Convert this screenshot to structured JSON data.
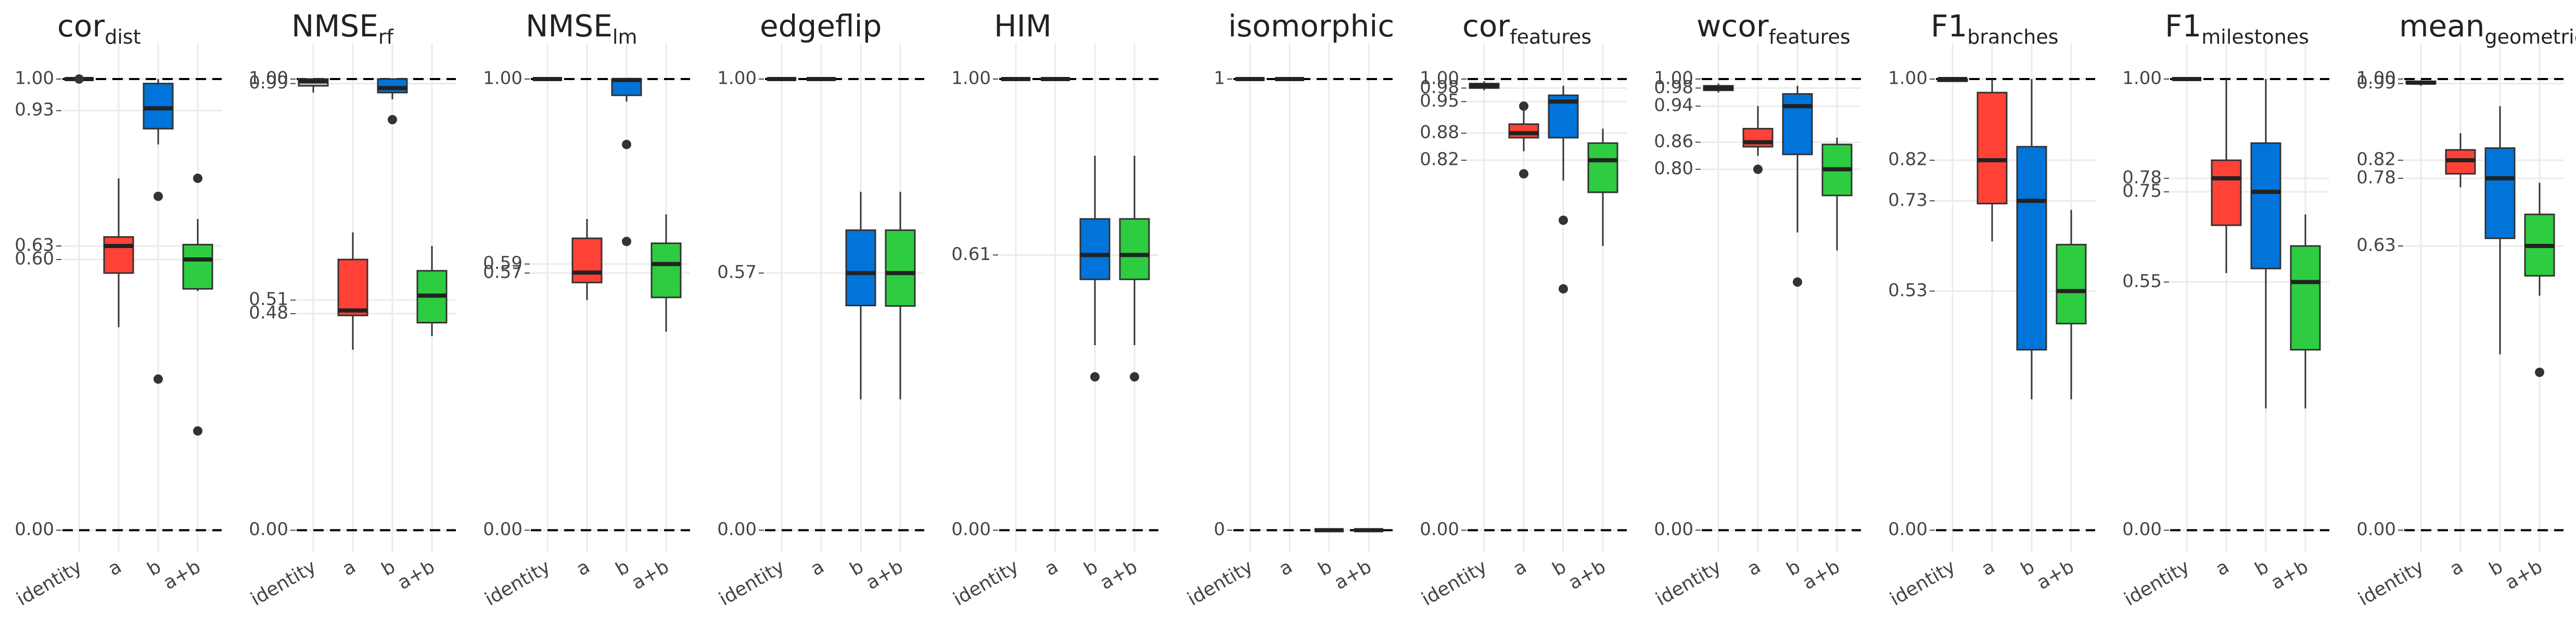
{
  "chart_data": [
    {
      "type": "box",
      "title": "cor",
      "title_sub": "dist",
      "categories": [
        "identity",
        "a",
        "b",
        "a+b"
      ],
      "colors": [
        "#bdbdbd",
        "#ff4136",
        "#0074d9",
        "#2ecc40"
      ],
      "ylim": [
        -0.05,
        1.08
      ],
      "yticks": [
        {
          "value": 0,
          "label": "0.00"
        },
        {
          "value": 0.6,
          "label": "0.60"
        },
        0.63,
        0.93,
        {
          "value": 1,
          "label": "1.00"
        }
      ],
      "reference_lines": [
        0,
        1
      ],
      "boxes": [
        {
          "low": 1,
          "q1": 1,
          "median": 1,
          "q3": 1,
          "high": 1,
          "outliers": [
            1
          ]
        },
        {
          "low": 0.45,
          "q1": 0.57,
          "median": 0.63,
          "q3": 0.65,
          "high": 0.78,
          "outliers": []
        },
        {
          "low": 0.855,
          "q1": 0.89,
          "median": 0.935,
          "q3": 0.99,
          "high": 1,
          "outliers": [
            0.74,
            0.335
          ]
        },
        {
          "low": 0.53,
          "q1": 0.535,
          "median": 0.6,
          "q3": 0.633,
          "high": 0.69,
          "outliers": [
            0.78,
            0.22
          ]
        }
      ]
    },
    {
      "type": "box",
      "title": "NMSE",
      "title_sub": "rf",
      "categories": [
        "identity",
        "a",
        "b",
        "a+b"
      ],
      "colors": [
        "#bdbdbd",
        "#ff4136",
        "#0074d9",
        "#2ecc40"
      ],
      "ylim": [
        -0.05,
        1.08
      ],
      "yticks": [
        {
          "value": 0,
          "label": "0.00"
        },
        {
          "value": 0.48,
          "label": "0.48"
        },
        0.51,
        0.99,
        {
          "value": 1,
          "label": "1.00"
        }
      ],
      "reference_lines": [
        0,
        1
      ],
      "boxes": [
        {
          "low": 0.97,
          "q1": 0.985,
          "median": 0.995,
          "q3": 1,
          "high": 1,
          "outliers": []
        },
        {
          "low": 0.4,
          "q1": 0.476,
          "median": 0.487,
          "q3": 0.6,
          "high": 0.66,
          "outliers": []
        },
        {
          "low": 0.955,
          "q1": 0.97,
          "median": 0.98,
          "q3": 1,
          "high": 1,
          "outliers": [
            0.91
          ]
        },
        {
          "low": 0.43,
          "q1": 0.46,
          "median": 0.52,
          "q3": 0.575,
          "high": 0.63,
          "outliers": []
        }
      ]
    },
    {
      "type": "box",
      "title": "NMSE",
      "title_sub": "lm",
      "categories": [
        "identity",
        "a",
        "b",
        "a+b"
      ],
      "colors": [
        "#bdbdbd",
        "#ff4136",
        "#0074d9",
        "#2ecc40"
      ],
      "ylim": [
        -0.05,
        1.08
      ],
      "yticks": [
        {
          "value": 0,
          "label": "0.00"
        },
        0.57,
        0.59,
        {
          "value": 1,
          "label": "1.00"
        }
      ],
      "reference_lines": [
        0,
        1
      ],
      "boxes": [
        {
          "low": 1,
          "q1": 1,
          "median": 1,
          "q3": 1,
          "high": 1,
          "outliers": []
        },
        {
          "low": 0.51,
          "q1": 0.549,
          "median": 0.571,
          "q3": 0.647,
          "high": 0.69,
          "outliers": []
        },
        {
          "low": 0.95,
          "q1": 0.964,
          "median": 0.998,
          "q3": 1,
          "high": 1,
          "outliers": [
            0.855,
            0.64
          ]
        },
        {
          "low": 0.44,
          "q1": 0.516,
          "median": 0.59,
          "q3": 0.636,
          "high": 0.7,
          "outliers": []
        }
      ]
    },
    {
      "type": "box",
      "title": "edgeflip",
      "categories": [
        "identity",
        "a",
        "b",
        "a+b"
      ],
      "colors": [
        "#bdbdbd",
        "#ff4136",
        "#0074d9",
        "#2ecc40"
      ],
      "ylim": [
        -0.05,
        1.08
      ],
      "yticks": [
        {
          "value": 0,
          "label": "0.00"
        },
        0.57,
        {
          "value": 1,
          "label": "1.00"
        }
      ],
      "reference_lines": [
        0,
        1
      ],
      "boxes": [
        {
          "low": 1,
          "q1": 1,
          "median": 1,
          "q3": 1,
          "high": 1,
          "outliers": []
        },
        {
          "low": 1,
          "q1": 1,
          "median": 1,
          "q3": 1,
          "high": 1,
          "outliers": []
        },
        {
          "low": 0.29,
          "q1": 0.498,
          "median": 0.57,
          "q3": 0.665,
          "high": 0.75,
          "outliers": []
        },
        {
          "low": 0.29,
          "q1": 0.497,
          "median": 0.57,
          "q3": 0.665,
          "high": 0.75,
          "outliers": []
        }
      ]
    },
    {
      "type": "box",
      "title": "HIM",
      "categories": [
        "identity",
        "a",
        "b",
        "a+b"
      ],
      "colors": [
        "#bdbdbd",
        "#ff4136",
        "#0074d9",
        "#2ecc40"
      ],
      "ylim": [
        -0.05,
        1.08
      ],
      "yticks": [
        {
          "value": 0,
          "label": "0.00"
        },
        0.61,
        {
          "value": 1,
          "label": "1.00"
        }
      ],
      "reference_lines": [
        0,
        1
      ],
      "boxes": [
        {
          "low": 1,
          "q1": 1,
          "median": 1,
          "q3": 1,
          "high": 1,
          "outliers": []
        },
        {
          "low": 1,
          "q1": 1,
          "median": 1,
          "q3": 1,
          "high": 1,
          "outliers": []
        },
        {
          "low": 0.41,
          "q1": 0.556,
          "median": 0.61,
          "q3": 0.69,
          "high": 0.83,
          "outliers": [
            0.34
          ]
        },
        {
          "low": 0.41,
          "q1": 0.556,
          "median": 0.61,
          "q3": 0.69,
          "high": 0.83,
          "outliers": [
            0.34
          ]
        }
      ]
    },
    {
      "type": "box",
      "title": "isomorphic",
      "categories": [
        "identity",
        "a",
        "b",
        "a+b"
      ],
      "colors": [
        "#bdbdbd",
        "#ff4136",
        "#0074d9",
        "#2ecc40"
      ],
      "ylim": [
        -0.05,
        1.08
      ],
      "yticks": [
        0,
        1
      ],
      "reference_lines": [
        0,
        1
      ],
      "boxes": [
        {
          "low": 1,
          "q1": 1,
          "median": 1,
          "q3": 1,
          "high": 1,
          "outliers": []
        },
        {
          "low": 1,
          "q1": 1,
          "median": 1,
          "q3": 1,
          "high": 1,
          "outliers": []
        },
        {
          "low": 0,
          "q1": 0,
          "median": 0,
          "q3": 0,
          "high": 0,
          "outliers": []
        },
        {
          "low": 0,
          "q1": 0,
          "median": 0,
          "q3": 0,
          "high": 0,
          "outliers": []
        }
      ]
    },
    {
      "type": "box",
      "title": "cor",
      "title_sub": "features",
      "categories": [
        "identity",
        "a",
        "b",
        "a+b"
      ],
      "colors": [
        "#bdbdbd",
        "#ff4136",
        "#0074d9",
        "#2ecc40"
      ],
      "ylim": [
        -0.05,
        1.08
      ],
      "yticks": [
        {
          "value": 0,
          "label": "0.00"
        },
        0.82,
        0.88,
        0.95,
        0.98,
        {
          "value": 1,
          "label": "1.00"
        }
      ],
      "reference_lines": [
        0,
        1
      ],
      "boxes": [
        {
          "low": 0.975,
          "q1": 0.98,
          "median": 0.985,
          "q3": 0.99,
          "high": 0.995,
          "outliers": []
        },
        {
          "low": 0.84,
          "q1": 0.87,
          "median": 0.88,
          "q3": 0.9,
          "high": 0.93,
          "outliers": [
            0.94,
            0.79
          ]
        },
        {
          "low": 0.775,
          "q1": 0.87,
          "median": 0.95,
          "q3": 0.964,
          "high": 0.985,
          "outliers": [
            0.687,
            0.535
          ]
        },
        {
          "low": 0.63,
          "q1": 0.749,
          "median": 0.82,
          "q3": 0.858,
          "high": 0.89,
          "outliers": []
        }
      ]
    },
    {
      "type": "box",
      "title": "wcor",
      "title_sub": "features",
      "categories": [
        "identity",
        "a",
        "b",
        "a+b"
      ],
      "colors": [
        "#bdbdbd",
        "#ff4136",
        "#0074d9",
        "#2ecc40"
      ],
      "ylim": [
        -0.05,
        1.08
      ],
      "yticks": [
        {
          "value": 0,
          "label": "0.00"
        },
        {
          "value": 0.8,
          "label": "0.80"
        },
        0.86,
        0.94,
        0.98,
        {
          "value": 1,
          "label": "1.00"
        }
      ],
      "reference_lines": [
        0,
        1
      ],
      "boxes": [
        {
          "low": 0.97,
          "q1": 0.975,
          "median": 0.98,
          "q3": 0.985,
          "high": 0.99,
          "outliers": []
        },
        {
          "low": 0.83,
          "q1": 0.85,
          "median": 0.86,
          "q3": 0.89,
          "high": 0.94,
          "outliers": [
            0.8
          ]
        },
        {
          "low": 0.66,
          "q1": 0.833,
          "median": 0.94,
          "q3": 0.967,
          "high": 0.985,
          "outliers": [
            0.55
          ]
        },
        {
          "low": 0.62,
          "q1": 0.742,
          "median": 0.8,
          "q3": 0.855,
          "high": 0.87,
          "outliers": []
        }
      ]
    },
    {
      "type": "box",
      "title": "F1",
      "title_sub": "branches",
      "categories": [
        "identity",
        "a",
        "b",
        "a+b"
      ],
      "colors": [
        "#bdbdbd",
        "#ff4136",
        "#0074d9",
        "#2ecc40"
      ],
      "ylim": [
        -0.05,
        1.08
      ],
      "yticks": [
        {
          "value": 0,
          "label": "0.00"
        },
        0.53,
        0.73,
        0.82,
        {
          "value": 1,
          "label": "1.00"
        }
      ],
      "reference_lines": [
        0,
        1
      ],
      "boxes": [
        {
          "low": 0.995,
          "q1": 0.995,
          "median": 1,
          "q3": 1,
          "high": 1,
          "outliers": []
        },
        {
          "low": 0.64,
          "q1": 0.724,
          "median": 0.82,
          "q3": 0.97,
          "high": 1,
          "outliers": []
        },
        {
          "low": 0.29,
          "q1": 0.4,
          "median": 0.73,
          "q3": 0.85,
          "high": 1,
          "outliers": []
        },
        {
          "low": 0.29,
          "q1": 0.458,
          "median": 0.53,
          "q3": 0.633,
          "high": 0.71,
          "outliers": []
        }
      ]
    },
    {
      "type": "box",
      "title": "F1",
      "title_sub": "milestones",
      "categories": [
        "identity",
        "a",
        "b",
        "a+b"
      ],
      "colors": [
        "#bdbdbd",
        "#ff4136",
        "#0074d9",
        "#2ecc40"
      ],
      "ylim": [
        -0.05,
        1.08
      ],
      "yticks": [
        {
          "value": 0,
          "label": "0.00"
        },
        0.55,
        0.75,
        0.78,
        {
          "value": 1,
          "label": "1.00"
        }
      ],
      "reference_lines": [
        0,
        1
      ],
      "boxes": [
        {
          "low": 1,
          "q1": 1,
          "median": 1,
          "q3": 1,
          "high": 1,
          "outliers": []
        },
        {
          "low": 0.57,
          "q1": 0.676,
          "median": 0.78,
          "q3": 0.82,
          "high": 1,
          "outliers": []
        },
        {
          "low": 0.27,
          "q1": 0.58,
          "median": 0.75,
          "q3": 0.858,
          "high": 1,
          "outliers": []
        },
        {
          "low": 0.27,
          "q1": 0.4,
          "median": 0.55,
          "q3": 0.63,
          "high": 0.7,
          "outliers": []
        }
      ]
    },
    {
      "type": "box",
      "title": "mean",
      "title_sub": "geometric",
      "categories": [
        "identity",
        "a",
        "b",
        "a+b"
      ],
      "colors": [
        "#bdbdbd",
        "#ff4136",
        "#0074d9",
        "#2ecc40"
      ],
      "ylim": [
        -0.05,
        1.08
      ],
      "yticks": [
        {
          "value": 0,
          "label": "0.00"
        },
        0.63,
        0.78,
        0.82,
        0.99,
        {
          "value": 1,
          "label": "1.00"
        }
      ],
      "reference_lines": [
        0,
        1
      ],
      "boxes": [
        {
          "low": 0.985,
          "q1": 0.99,
          "median": 0.992,
          "q3": 0.995,
          "high": 0.997,
          "outliers": []
        },
        {
          "low": 0.76,
          "q1": 0.79,
          "median": 0.82,
          "q3": 0.843,
          "high": 0.88,
          "outliers": []
        },
        {
          "low": 0.39,
          "q1": 0.647,
          "median": 0.78,
          "q3": 0.847,
          "high": 0.94,
          "outliers": []
        },
        {
          "low": 0.52,
          "q1": 0.564,
          "median": 0.63,
          "q3": 0.7,
          "high": 0.77,
          "outliers": [
            0.35
          ]
        }
      ]
    }
  ]
}
